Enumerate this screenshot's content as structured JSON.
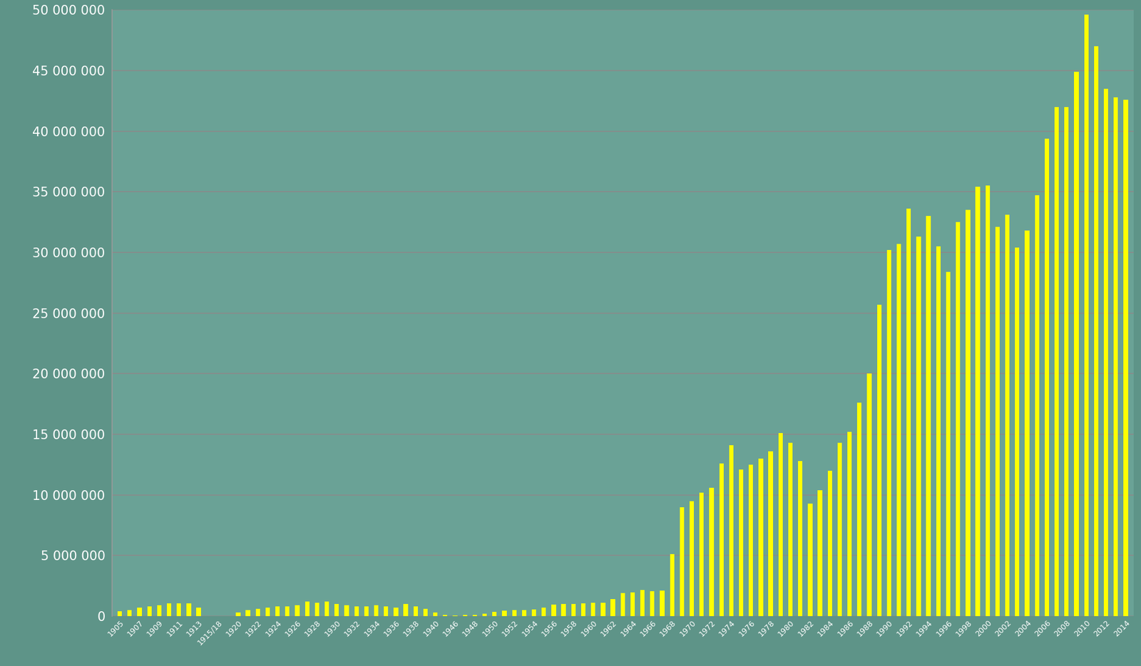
{
  "chart_data": {
    "type": "bar",
    "color": "#ffff00",
    "grid": true,
    "categories": [
      "1905",
      null,
      "1907",
      null,
      "1909",
      null,
      "1911",
      null,
      "1913",
      null,
      "1915/18",
      null,
      "1920",
      null,
      "1922",
      null,
      "1924",
      null,
      "1926",
      null,
      "1928",
      null,
      "1930",
      null,
      "1932",
      null,
      "1934",
      null,
      "1936",
      null,
      "1938",
      null,
      "1940",
      null,
      "1946",
      null,
      "1948",
      null,
      "1950",
      null,
      "1952",
      null,
      "1954",
      null,
      "1956",
      null,
      "1958",
      null,
      "1960",
      null,
      "1962",
      null,
      "1964",
      null,
      "1966",
      null,
      "1968",
      null,
      "1970",
      null,
      "1972",
      null,
      "1974",
      null,
      "1976",
      null,
      "1978",
      null,
      "1980",
      null,
      "1982",
      null,
      "1984",
      null,
      "1986",
      null,
      "1988",
      null,
      "1990",
      null,
      "1992",
      null,
      "1994",
      null,
      "1996",
      null,
      "1998",
      null,
      "2000",
      null,
      "2002",
      null,
      "2004",
      null,
      "2006",
      null,
      "2008",
      null,
      "2010",
      null,
      "2012",
      null,
      "2014"
    ],
    "values": [
      400000,
      500000,
      700000,
      800000,
      900000,
      1050000,
      1050000,
      1050000,
      700000,
      0,
      0,
      0,
      300000,
      500000,
      600000,
      700000,
      800000,
      800000,
      900000,
      1200000,
      1100000,
      1200000,
      1000000,
      900000,
      800000,
      800000,
      900000,
      800000,
      700000,
      1000000,
      800000,
      600000,
      300000,
      100000,
      50000,
      100000,
      100000,
      200000,
      350000,
      450000,
      500000,
      500000,
      550000,
      700000,
      950000,
      1000000,
      1000000,
      1050000,
      1100000,
      1100000,
      1400000,
      1900000,
      1950000,
      2150000,
      2050000,
      2100000,
      5100000,
      9000000,
      9500000,
      10200000,
      10600000,
      12600000,
      14100000,
      12100000,
      12500000,
      13000000,
      13600000,
      15100000,
      14300000,
      12800000,
      9300000,
      10400000,
      12000000,
      14300000,
      15200000,
      17600000,
      20000000,
      25700000,
      30200000,
      30700000,
      33600000,
      31300000,
      33000000,
      30500000,
      28400000,
      32500000,
      33500000,
      35400000,
      35500000,
      32100000,
      33100000,
      30400000,
      31800000,
      34700000,
      39400000,
      42000000,
      42000000,
      44900000,
      49600000,
      47000000,
      43500000,
      42800000,
      42600000
    ],
    "ylim": [
      0,
      50000000
    ],
    "yticks": [
      0,
      {
        "value": 5000000,
        "label": "5 000 000"
      },
      {
        "value": 10000000,
        "label": "10 000 000"
      },
      {
        "value": 15000000,
        "label": "15 000 000"
      },
      {
        "value": 20000000,
        "label": "20 000 000"
      },
      {
        "value": 25000000,
        "label": "25 000 000"
      },
      {
        "value": 30000000,
        "label": "30 000 000"
      },
      {
        "value": 35000000,
        "label": "35 000 000"
      },
      {
        "value": 40000000,
        "label": "40 000 000"
      },
      {
        "value": 45000000,
        "label": "45 000 000"
      },
      {
        "value": 50000000,
        "label": "50 000 000"
      }
    ]
  }
}
